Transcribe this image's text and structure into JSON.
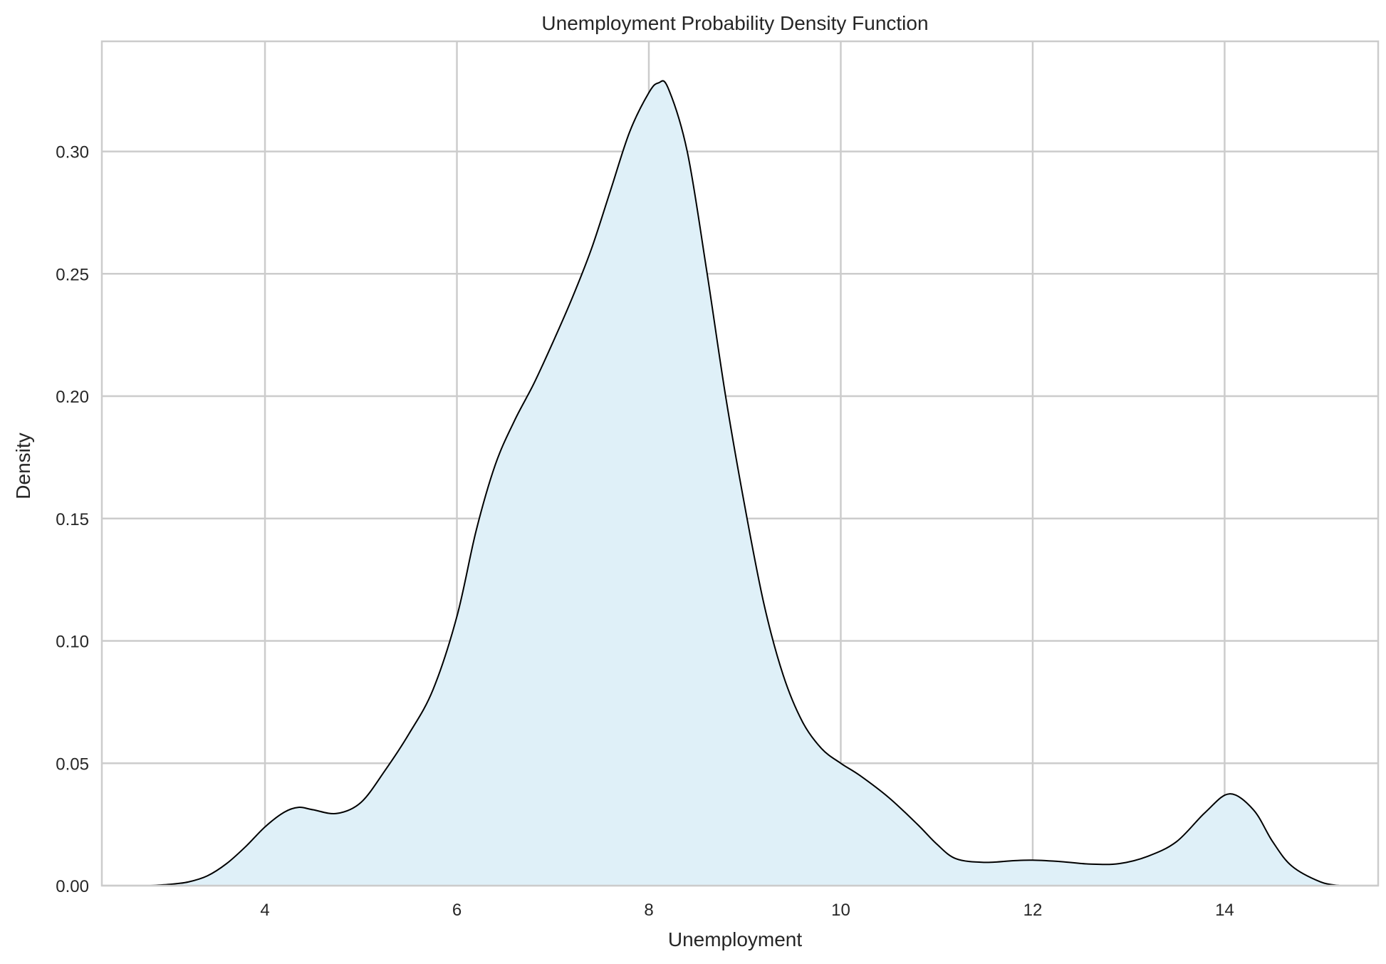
{
  "chart_data": {
    "type": "area",
    "title": "Unemployment Probability Density Function",
    "xlabel": "Unemployment",
    "ylabel": "Density",
    "xlim": [
      2.3,
      15.6
    ],
    "ylim": [
      0,
      0.345
    ],
    "x_ticks": [
      4,
      6,
      8,
      10,
      12,
      14
    ],
    "x_tick_labels": [
      "4",
      "6",
      "8",
      "10",
      "12",
      "14"
    ],
    "y_ticks": [
      0,
      0.05,
      0.1,
      0.15,
      0.2,
      0.25,
      0.3
    ],
    "y_tick_labels": [
      "0.00",
      "0.05",
      "0.10",
      "0.15",
      "0.20",
      "0.25",
      "0.30"
    ],
    "grid": true,
    "legend": "none",
    "fill_color": "#dff0f8",
    "line_color": "#000000",
    "grid_color": "#cccccc",
    "series": [
      {
        "x": [
          2.8,
          3.0,
          3.2,
          3.4,
          3.6,
          3.8,
          4.0,
          4.2,
          4.35,
          4.5,
          4.75,
          5.0,
          5.25,
          5.5,
          5.75,
          6.0,
          6.2,
          6.4,
          6.6,
          6.8,
          7.0,
          7.2,
          7.4,
          7.6,
          7.8,
          8.0,
          8.1,
          8.2,
          8.4,
          8.6,
          8.8,
          9.0,
          9.2,
          9.4,
          9.6,
          9.8,
          10.0,
          10.2,
          10.5,
          10.8,
          11.0,
          11.2,
          11.5,
          11.8,
          12.0,
          12.3,
          12.6,
          12.9,
          13.2,
          13.5,
          13.8,
          14.05,
          14.3,
          14.5,
          14.7,
          15.0,
          15.2
        ],
        "y": [
          0.0,
          0.0005,
          0.0015,
          0.004,
          0.009,
          0.016,
          0.024,
          0.03,
          0.032,
          0.031,
          0.0295,
          0.034,
          0.047,
          0.062,
          0.08,
          0.11,
          0.145,
          0.172,
          0.19,
          0.205,
          0.222,
          0.24,
          0.26,
          0.284,
          0.308,
          0.324,
          0.328,
          0.326,
          0.3,
          0.252,
          0.2,
          0.155,
          0.115,
          0.086,
          0.067,
          0.056,
          0.05,
          0.045,
          0.036,
          0.025,
          0.017,
          0.011,
          0.0095,
          0.0102,
          0.0104,
          0.0098,
          0.0088,
          0.009,
          0.012,
          0.018,
          0.03,
          0.0375,
          0.031,
          0.018,
          0.008,
          0.0015,
          0.0
        ]
      }
    ]
  }
}
